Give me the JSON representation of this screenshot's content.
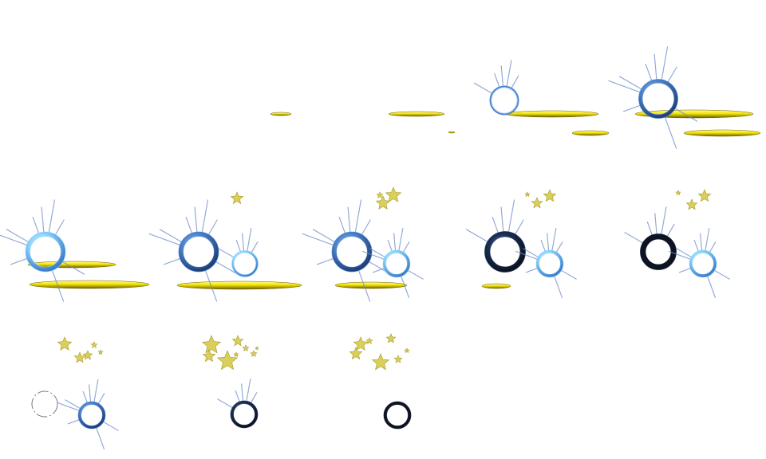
{
  "sheet": {
    "colors": {
      "streak": "#f4e600",
      "streak_edge": "#6b5c00",
      "ring_light": "#8fd6ff",
      "ring_mid": "#4f86cf",
      "ring_dark": "#1b2f55",
      "ring_black": "#0c1424",
      "star_fill": "#d9cf5a",
      "star_edge": "#a89b2a",
      "spike": "#6f8fc9"
    },
    "frames": [
      {
        "streaks": [
          {
            "t": "small"
          }
        ],
        "rings": [],
        "stars": []
      },
      {
        "streaks": [
          {
            "t": "medium"
          },
          {
            "t": "tiny"
          }
        ],
        "rings": [],
        "stars": []
      },
      {
        "streaks": [
          {
            "t": "long"
          },
          {
            "t": "short"
          }
        ],
        "rings": [
          {
            "tone": "outline",
            "spikes": "few"
          }
        ],
        "stars": []
      },
      {
        "streaks": [
          {
            "t": "long"
          },
          {
            "t": "long"
          }
        ],
        "rings": [
          {
            "tone": "mid",
            "spikes": "many"
          }
        ],
        "stars": []
      },
      {
        "streaks": [
          {
            "t": "long"
          },
          {
            "t": "long"
          }
        ],
        "rings": [
          {
            "tone": "light",
            "spikes": "many"
          }
        ],
        "stars": []
      },
      {
        "streaks": [
          {
            "t": "long"
          },
          {
            "t": "long"
          }
        ],
        "rings": [
          {
            "tone": "mid",
            "spikes": "many"
          },
          {
            "tone": "light",
            "spikes": "few"
          }
        ],
        "stars": [
          {
            "n": 1
          }
        ]
      },
      {
        "streaks": [
          {
            "t": "medium"
          }
        ],
        "rings": [
          {
            "tone": "mid",
            "spikes": "many"
          },
          {
            "tone": "light",
            "spikes": "many"
          }
        ],
        "stars": [
          {
            "n": 3
          }
        ]
      },
      {
        "streaks": [
          {
            "t": "short"
          }
        ],
        "rings": [
          {
            "tone": "dark",
            "spikes": "few"
          },
          {
            "tone": "light",
            "spikes": "many"
          }
        ],
        "stars": [
          {
            "n": 3
          }
        ]
      },
      {
        "streaks": [],
        "rings": [
          {
            "tone": "black",
            "spikes": "few"
          },
          {
            "tone": "light",
            "spikes": "many"
          }
        ],
        "stars": [
          {
            "n": 3
          }
        ]
      },
      {
        "streaks": [],
        "rings": [
          {
            "tone": "faint",
            "spikes": "none"
          },
          {
            "tone": "mid",
            "spikes": "many"
          }
        ],
        "stars": [
          {
            "n": 5
          }
        ]
      },
      {
        "streaks": [],
        "rings": [
          {
            "tone": "dark",
            "spikes": "few"
          }
        ],
        "stars": [
          {
            "n": 8
          }
        ]
      },
      {
        "streaks": [],
        "rings": [
          {
            "tone": "black",
            "spikes": "none"
          }
        ],
        "stars": [
          {
            "n": 7
          }
        ]
      }
    ]
  }
}
